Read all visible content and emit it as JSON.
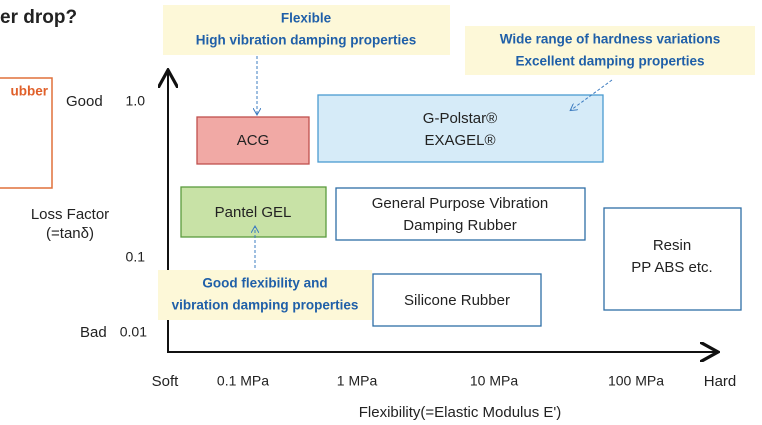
{
  "heading": "er drop?",
  "side_box": "ubber",
  "y_axis": {
    "title_line1": "Loss Factor",
    "title_line2": "(=tanδ)",
    "good": "Good",
    "bad": "Bad",
    "ticks": [
      "1.0",
      "0.1",
      "0.01"
    ]
  },
  "x_axis": {
    "soft": "Soft",
    "hard": "Hard",
    "ticks": [
      "0.1 MPa",
      "1 MPa",
      "10 MPa",
      "100 MPa"
    ],
    "title": "Flexibility(=Elastic Modulus E')"
  },
  "boxes": [
    {
      "lines": [
        "ACG"
      ]
    },
    {
      "lines": [
        "G-Polstar®",
        "EXAGEL®"
      ]
    },
    {
      "lines": [
        "Pantel GEL"
      ]
    },
    {
      "lines": [
        "General Purpose Vibration",
        "Damping Rubber"
      ]
    },
    {
      "lines": [
        "Resin",
        "PP ABS etc."
      ]
    },
    {
      "lines": [
        "Silicone Rubber"
      ]
    }
  ],
  "callouts": [
    {
      "lines": [
        "Flexible",
        "High vibration damping properties"
      ]
    },
    {
      "lines": [
        "Wide range of hardness variations",
        "Excellent damping properties"
      ]
    },
    {
      "lines": [
        "Good flexibility and",
        "vibration damping properties"
      ]
    }
  ]
}
